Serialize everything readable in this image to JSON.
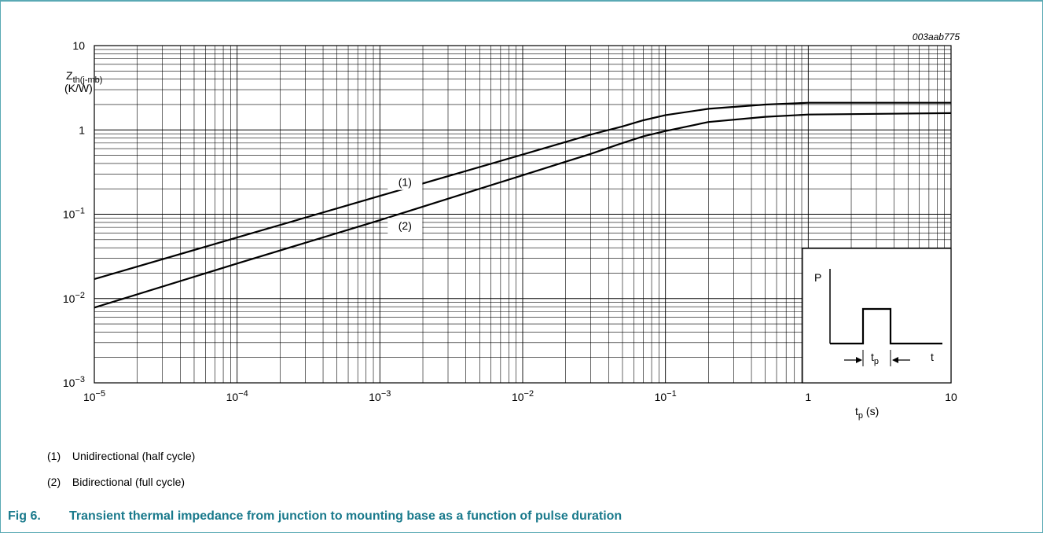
{
  "figure": {
    "code": "003aab775",
    "caption_number": "Fig 6.",
    "caption_text": "Transient thermal impedance from junction to mounting base as a function of pulse duration",
    "legend": [
      {
        "num": "(1)",
        "text": "Unidirectional (half cycle)"
      },
      {
        "num": "(2)",
        "text": "Bidirectional (full cycle)"
      }
    ],
    "colors": {
      "caption": "#1a7a8c",
      "frame": "#5aa9b4",
      "line": "#000000",
      "grid": "#000000"
    }
  },
  "chart_data": {
    "type": "line",
    "x_scale": "log",
    "y_scale": "log",
    "xlim": [
      1e-05,
      10
    ],
    "ylim": [
      0.001,
      10
    ],
    "grid": true,
    "ylabel": {
      "main": "Z",
      "sub": "th(j-mb)",
      "unit": "(K/W)"
    },
    "xlabel": {
      "main": "t",
      "sub": "p",
      "unit": " (s)"
    },
    "x_ticks": [
      {
        "value": 1e-05,
        "base": "10",
        "exp": "−5"
      },
      {
        "value": 0.0001,
        "base": "10",
        "exp": "−4"
      },
      {
        "value": 0.001,
        "base": "10",
        "exp": "−3"
      },
      {
        "value": 0.01,
        "base": "10",
        "exp": "−2"
      },
      {
        "value": 0.1,
        "base": "10",
        "exp": "−1"
      },
      {
        "value": 1,
        "base": "1",
        "exp": ""
      },
      {
        "value": 10,
        "base": "10",
        "exp": ""
      }
    ],
    "y_ticks": [
      {
        "value": 0.001,
        "base": "10",
        "exp": "−3"
      },
      {
        "value": 0.01,
        "base": "10",
        "exp": "−2"
      },
      {
        "value": 0.1,
        "base": "10",
        "exp": "−1"
      },
      {
        "value": 1,
        "base": "1",
        "exp": ""
      },
      {
        "value": 10,
        "base": "10",
        "exp": ""
      }
    ],
    "series": [
      {
        "name": "(1)",
        "x": [
          1e-05,
          0.0001,
          0.001,
          0.01,
          0.02,
          0.03,
          0.05,
          0.07,
          0.1,
          0.2,
          0.5,
          1,
          10
        ],
        "y": [
          0.017,
          0.053,
          0.165,
          0.51,
          0.72,
          0.88,
          1.1,
          1.3,
          1.5,
          1.78,
          2.0,
          2.1,
          2.1
        ]
      },
      {
        "name": "(2)",
        "x": [
          1e-05,
          0.0001,
          0.001,
          0.01,
          0.02,
          0.03,
          0.05,
          0.07,
          0.1,
          0.2,
          0.5,
          1,
          10
        ],
        "y": [
          0.0078,
          0.026,
          0.085,
          0.29,
          0.42,
          0.52,
          0.7,
          0.84,
          0.97,
          1.24,
          1.43,
          1.52,
          1.58
        ]
      }
    ],
    "inset": {
      "y_label": "P",
      "x_label": "t",
      "pulse_label_main": "t",
      "pulse_label_sub": "p"
    }
  }
}
